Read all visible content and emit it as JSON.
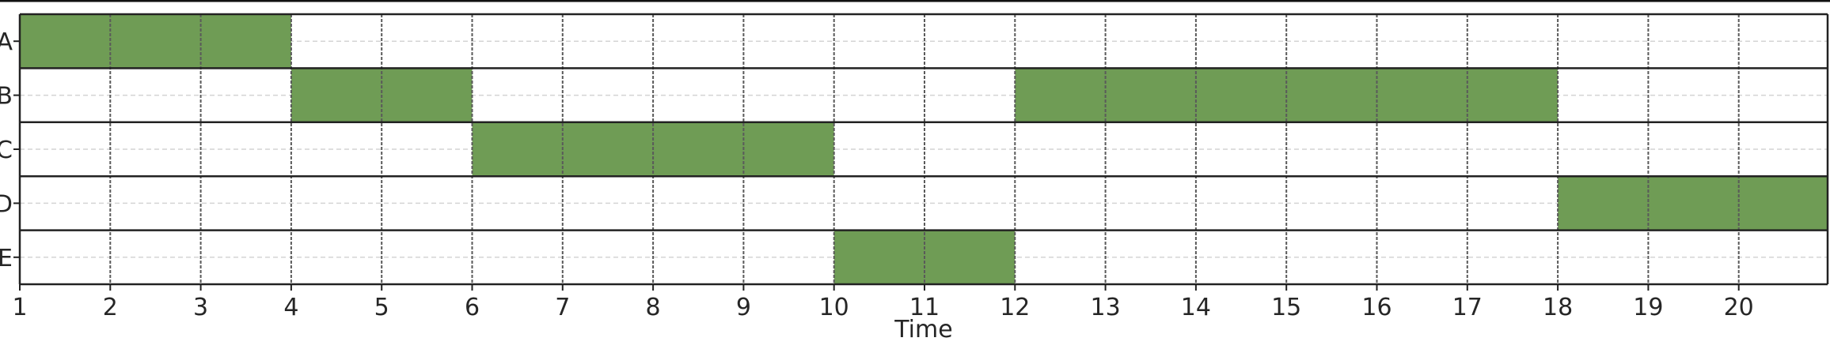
{
  "chart_data": {
    "type": "table",
    "title": "",
    "xlabel": "Time",
    "ylabel": "",
    "x_ticks": [
      "1",
      "2",
      "3",
      "4",
      "5",
      "6",
      "7",
      "8",
      "9",
      "10",
      "11",
      "12",
      "13",
      "14",
      "15",
      "16",
      "17",
      "18",
      "19",
      "20"
    ],
    "xlim": [
      1,
      21
    ],
    "rows": [
      "A",
      "B",
      "C",
      "D",
      "E"
    ],
    "grid": true,
    "schedule": [
      {
        "row": "A",
        "start": 1,
        "end": 4
      },
      {
        "row": "B",
        "start": 4,
        "end": 6
      },
      {
        "row": "C",
        "start": 6,
        "end": 10
      },
      {
        "row": "E",
        "start": 10,
        "end": 12
      },
      {
        "row": "B",
        "start": 12,
        "end": 18
      },
      {
        "row": "D",
        "start": 18,
        "end": 21
      }
    ],
    "bar_color": "#6f9c55",
    "grid_color": "#5a5a5a",
    "row_line_color": "#222222"
  }
}
